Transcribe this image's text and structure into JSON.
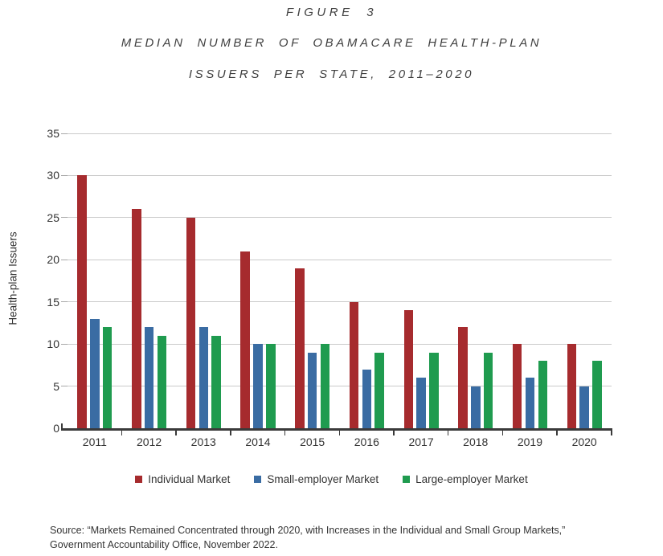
{
  "header": {
    "figure_label": "FIGURE 3",
    "title_line1": "MEDIAN NUMBER OF OBAMACARE HEALTH-PLAN",
    "title_line2": "ISSUERS PER STATE, 2011–2020"
  },
  "chart_data": {
    "type": "bar",
    "title": "FIGURE 3 — MEDIAN NUMBER OF OBAMACARE HEALTH-PLAN ISSUERS PER STATE, 2011–2020",
    "categories": [
      "2011",
      "2012",
      "2013",
      "2014",
      "2015",
      "2016",
      "2017",
      "2018",
      "2019",
      "2020"
    ],
    "series": [
      {
        "name": "Individual Market",
        "color": "#A62B2E",
        "values": [
          30,
          26,
          25,
          21,
          19,
          15,
          14,
          12,
          10,
          10
        ]
      },
      {
        "name": "Small-employer Market",
        "color": "#3A6CA3",
        "values": [
          13,
          12,
          12,
          10,
          9,
          7,
          6,
          5,
          6,
          5
        ]
      },
      {
        "name": "Large-employer Market",
        "color": "#1F9B4F",
        "values": [
          12,
          11,
          11,
          10,
          10,
          9,
          9,
          9,
          8,
          8
        ]
      }
    ],
    "xlabel": "",
    "ylabel": "Health-plan Issuers",
    "ylim": [
      0,
      35
    ],
    "ytick_step": 5,
    "grid": true,
    "legend_position": "bottom",
    "axis_color": "#3a3a3a",
    "gridline_color": "#cacaca"
  },
  "source": {
    "line1": "Source: “Markets Remained Concentrated through 2020, with Increases in the Individual and Small Group Markets,”",
    "line2": "Government Accountability Office, November 2022."
  }
}
